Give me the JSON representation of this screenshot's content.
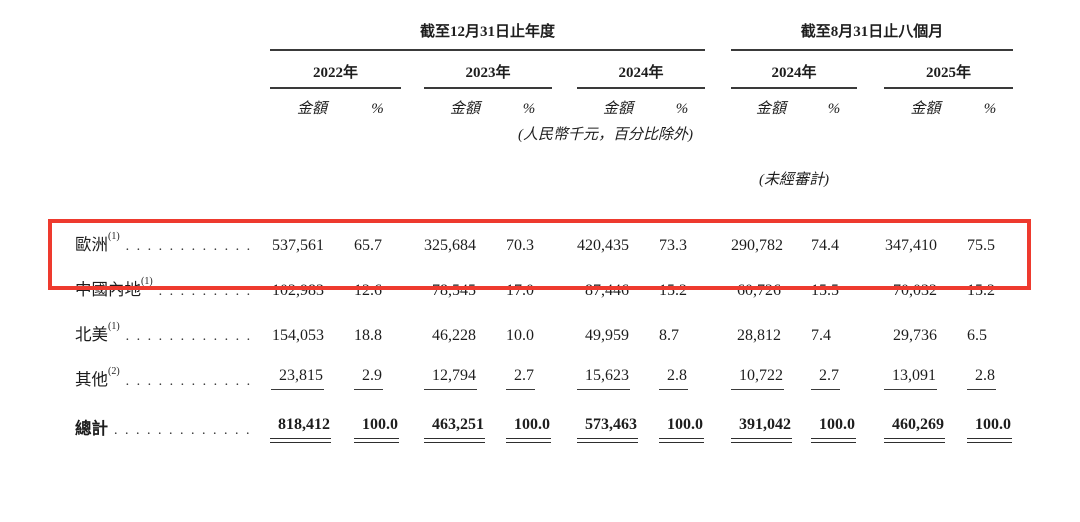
{
  "document": {
    "background": "#ffffff",
    "highlight_box_color": "#ee3a2e",
    "text_color": "#1d1d1d"
  },
  "table": {
    "period_groups": [
      {
        "label": "截至12月31日止年度"
      },
      {
        "label": "截至8月31日止八個月"
      }
    ],
    "year_columns": [
      "2022年",
      "2023年",
      "2024年",
      "2024年",
      "2025年"
    ],
    "sub_headers": {
      "amount": "金額",
      "percent": "%"
    },
    "currency_note": "(人民幣千元，百分比除外)",
    "unaudited_note": "(未經審計)",
    "rows": [
      {
        "id": "europe",
        "label": "歐洲",
        "footnote": "(1)",
        "highlighted": true,
        "underlined": false,
        "values": [
          "537,561",
          "65.7",
          "325,684",
          "70.3",
          "420,435",
          "73.3",
          "290,782",
          "74.4",
          "347,410",
          "75.5"
        ]
      },
      {
        "id": "mainland-china",
        "label": "中國內地",
        "footnote": "(1)",
        "highlighted": false,
        "underlined": false,
        "values": [
          "102,983",
          "12.6",
          "78,545",
          "17.0",
          "87,446",
          "15.2",
          "60,726",
          "15.5",
          "70,032",
          "15.2"
        ]
      },
      {
        "id": "north-america",
        "label": "北美",
        "footnote": "(1)",
        "highlighted": false,
        "underlined": false,
        "values": [
          "154,053",
          "18.8",
          "46,228",
          "10.0",
          "49,959",
          "8.7",
          "28,812",
          "7.4",
          "29,736",
          "6.5"
        ]
      },
      {
        "id": "others",
        "label": "其他",
        "footnote": "(2)",
        "highlighted": false,
        "underlined": true,
        "values": [
          "23,815",
          "2.9",
          "12,794",
          "2.7",
          "15,623",
          "2.8",
          "10,722",
          "2.7",
          "13,091",
          "2.8"
        ]
      }
    ],
    "total_row": {
      "id": "total",
      "label": "總計",
      "values": [
        "818,412",
        "100.0",
        "463,251",
        "100.0",
        "573,463",
        "100.0",
        "391,042",
        "100.0",
        "460,269",
        "100.0"
      ]
    }
  }
}
